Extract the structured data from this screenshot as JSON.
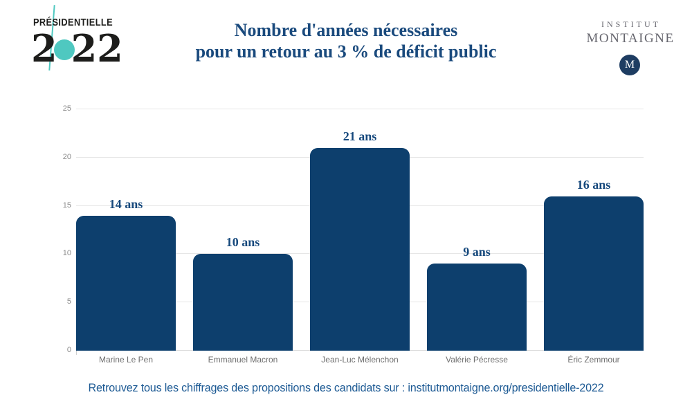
{
  "header": {
    "logo_left": {
      "top": "PRÉSIDENTIELLE",
      "year_prefix": "2",
      "year_suffix": "22"
    },
    "title_line1": "Nombre d'années nécessaires",
    "title_line2": "pour un retour au 3 % de déficit public",
    "logo_right": {
      "line1": "INSTITUT",
      "line2": "MONTAIGNE",
      "monogram": "M"
    }
  },
  "chart_data": {
    "type": "bar",
    "title": "Nombre d'années nécessaires pour un retour au 3 % de déficit public",
    "categories": [
      "Marine Le Pen",
      "Emmanuel Macron",
      "Jean-Luc Mélenchon",
      "Valérie Pécresse",
      "Éric Zemmour"
    ],
    "values": [
      14,
      10,
      21,
      9,
      16
    ],
    "value_labels": [
      "14 ans",
      "10 ans",
      "21 ans",
      "9 ans",
      "16 ans"
    ],
    "unit": "ans",
    "xlabel": "",
    "ylabel": "",
    "ylim": [
      0,
      25
    ],
    "yticks": [
      0,
      5,
      10,
      15,
      20,
      25
    ],
    "grid": true,
    "legend": false
  },
  "colors": {
    "bar": "#0d3f6d",
    "title": "#1a4a7d",
    "value_label": "#15487c",
    "accent_teal": "#4fc8c0",
    "footer": "#1d5a94",
    "gridline": "#e6e6e6",
    "tick_label": "#8a8a8a",
    "category_label": "#6e6e6e",
    "montaigne_gray": "#67676f",
    "montaigne_navy": "#1e3d62",
    "logo_black": "#1d1d1b"
  },
  "footer": {
    "text": "Retrouvez tous les chiffrages des propositions des candidats sur : institutmontaigne.org/presidentielle-2022"
  }
}
